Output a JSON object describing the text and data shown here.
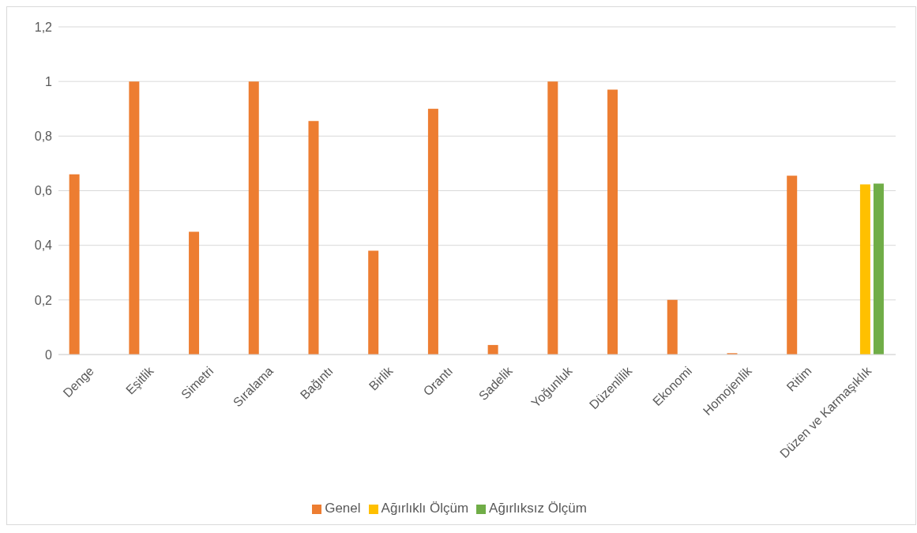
{
  "chart_data": {
    "type": "bar",
    "categories": [
      "Denge",
      "Eşitlik",
      "Simetri",
      "Sıralama",
      "Bağıntı",
      "Birlik",
      "Orantı",
      "Sadelik",
      "Yoğunluk",
      "Düzenlilik",
      "Ekonomi",
      "Homojenlik",
      "Ritim",
      "Düzen ve Karmaşıklık"
    ],
    "series": [
      {
        "name": "Genel",
        "color": "#ed7d31",
        "values": [
          0.66,
          1,
          0.45,
          1,
          0.855,
          0.38,
          0.9,
          0.035,
          1,
          0.97,
          0.2,
          0.005,
          0.655,
          null
        ]
      },
      {
        "name": "Ağırlıklı Ölçüm",
        "color": "#ffc000",
        "values": [
          null,
          null,
          null,
          null,
          null,
          null,
          null,
          null,
          null,
          null,
          null,
          null,
          null,
          0.623
        ]
      },
      {
        "name": "Ağırlıksız Ölçüm",
        "color": "#70ad47",
        "values": [
          null,
          null,
          null,
          null,
          null,
          null,
          null,
          null,
          null,
          null,
          null,
          null,
          null,
          0.626
        ]
      }
    ],
    "ylim": [
      0,
      1.2
    ],
    "yticks": [
      0,
      {
        "value": 0.2,
        "label": "0,2"
      },
      {
        "value": 0.4,
        "label": "0,4"
      },
      {
        "value": 0.6,
        "label": "0,6"
      },
      {
        "value": 0.8,
        "label": "0,8"
      },
      1,
      {
        "value": 1.2,
        "label": "1,2"
      }
    ],
    "grid": "y",
    "legend": "bottom"
  }
}
